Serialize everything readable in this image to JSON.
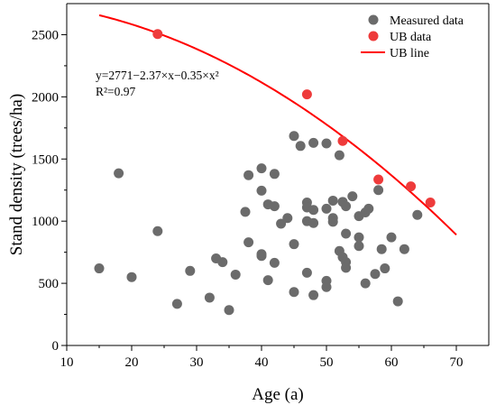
{
  "chart_data": {
    "type": "scatter",
    "xlabel": "Age (a)",
    "ylabel": "Stand density (trees/ha)",
    "xlim": [
      10,
      75
    ],
    "ylim": [
      0,
      2750
    ],
    "x_ticks": [
      10,
      20,
      30,
      40,
      50,
      60,
      70
    ],
    "y_ticks": [
      0,
      500,
      1000,
      1500,
      2000,
      2500
    ],
    "grid": false,
    "legend_position": "top-right",
    "annotation": {
      "equation": "y=2771−2.37×x−0.35×x²",
      "r2": "R²=0.97"
    },
    "series": [
      {
        "name": "Measured data",
        "type": "scatter",
        "color": "#6b6b6b",
        "points": [
          [
            15,
            620
          ],
          [
            18,
            1385
          ],
          [
            20,
            550
          ],
          [
            24,
            920
          ],
          [
            27,
            335
          ],
          [
            29,
            600
          ],
          [
            32,
            385
          ],
          [
            33,
            700
          ],
          [
            34,
            670
          ],
          [
            35,
            285
          ],
          [
            36,
            570
          ],
          [
            37.5,
            1075
          ],
          [
            38,
            1370
          ],
          [
            38,
            830
          ],
          [
            40,
            1425
          ],
          [
            40,
            1245
          ],
          [
            40,
            735
          ],
          [
            40,
            720
          ],
          [
            41,
            1135
          ],
          [
            41,
            525
          ],
          [
            42,
            1380
          ],
          [
            42,
            1120
          ],
          [
            42,
            665
          ],
          [
            43,
            980
          ],
          [
            44,
            1025
          ],
          [
            45,
            1685
          ],
          [
            45,
            815
          ],
          [
            45,
            430
          ],
          [
            46,
            1605
          ],
          [
            47,
            1150
          ],
          [
            47,
            1110
          ],
          [
            47,
            1000
          ],
          [
            47,
            585
          ],
          [
            48,
            1630
          ],
          [
            48,
            1090
          ],
          [
            48,
            985
          ],
          [
            48,
            405
          ],
          [
            50,
            1625
          ],
          [
            50,
            1100
          ],
          [
            50,
            520
          ],
          [
            50,
            470
          ],
          [
            51,
            1025
          ],
          [
            51,
            995
          ],
          [
            51,
            1165
          ],
          [
            52,
            1530
          ],
          [
            52,
            760
          ],
          [
            52.5,
            1155
          ],
          [
            52.5,
            710
          ],
          [
            53,
            1120
          ],
          [
            53,
            900
          ],
          [
            53,
            670
          ],
          [
            53,
            625
          ],
          [
            54,
            1200
          ],
          [
            55,
            1040
          ],
          [
            55,
            870
          ],
          [
            55,
            800
          ],
          [
            56,
            1070
          ],
          [
            56,
            500
          ],
          [
            56.5,
            1100
          ],
          [
            57.5,
            575
          ],
          [
            58,
            1250
          ],
          [
            58.5,
            775
          ],
          [
            59,
            620
          ],
          [
            60,
            870
          ],
          [
            61,
            355
          ],
          [
            62,
            775
          ],
          [
            64,
            1050
          ]
        ]
      },
      {
        "name": "UB data",
        "type": "scatter",
        "color": "#ee3b3b",
        "points": [
          [
            24,
            2505
          ],
          [
            47,
            2020
          ],
          [
            52.5,
            1645
          ],
          [
            58,
            1335
          ],
          [
            63,
            1280
          ],
          [
            66,
            1150
          ]
        ]
      },
      {
        "name": "UB line",
        "type": "line",
        "color": "#ff0000",
        "equation_coefficients": {
          "a": 2771,
          "b": -2.37,
          "c": -0.35
        },
        "x_range": [
          15,
          70
        ]
      }
    ]
  }
}
